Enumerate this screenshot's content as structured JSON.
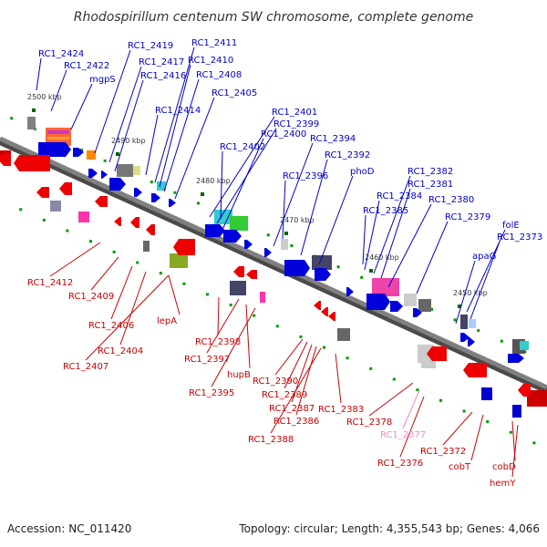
{
  "title": "Rhodospirillum centenum SW chromosome, complete genome",
  "footer": {
    "accession": "Accession: NC_011420",
    "summary": "Topology: circular; Length: 4,355,543 bp; Genes: 4,066"
  },
  "scale_marks": [
    "2500 kbp",
    "2490 kbp",
    "2480 kbp",
    "2470 kbp",
    "2460 kbp",
    "2450 kbp"
  ],
  "colors": {
    "forward_label": "#0000cc",
    "reverse_label": "#cc0000",
    "highlight_label": "#ee88cc",
    "backbone": "#808080",
    "forward_gene": "#0000dd",
    "reverse_gene": "#ee0000"
  },
  "forward_labels": [
    "RC1_2424",
    "RC1_2422",
    "mgpS",
    "RC1_2419",
    "RC1_2417",
    "RC1_2416",
    "RC1_2411",
    "RC1_2410",
    "RC1_2408",
    "RC1_2414",
    "RC1_2405",
    "RC1_2401",
    "RC1_2399",
    "RC1_2400",
    "RC1_2402",
    "RC1_2394",
    "RC1_2396",
    "RC1_2392",
    "phoD",
    "RC1_2382",
    "RC1_2381",
    "RC1_2384",
    "RC1_2380",
    "RC1_2385",
    "RC1_2379",
    "folE",
    "RC1_2373",
    "apaG"
  ],
  "reverse_labels": [
    "RC1_2412",
    "RC1_2409",
    "RC1_2406",
    "RC1_2404",
    "RC1_2407",
    "lepA",
    "RC1_2398",
    "RC1_2397",
    "hupB",
    "RC1_2395",
    "RC1_2390",
    "RC1_2389",
    "RC1_2387",
    "RC1_2386",
    "RC1_2388",
    "RC1_2383",
    "RC1_2378",
    "RC1_2377",
    "RC1_2376",
    "RC1_2372",
    "cobT",
    "cobD",
    "hemY"
  ]
}
